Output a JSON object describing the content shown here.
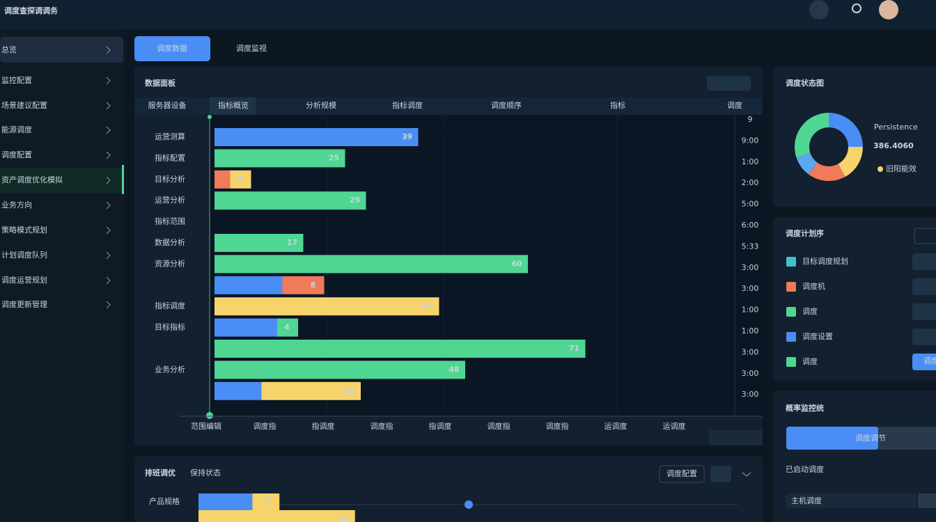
{
  "header": {
    "title": "调度查探调调务"
  },
  "sidebar": {
    "items": [
      "总览",
      "监控配置",
      "场景建议配置",
      "能源调度",
      "调度配置",
      "资产调度优化模拟",
      "业务方向",
      "策略模式规划",
      "计划调度队列",
      "调度运营规划",
      "调度更新管理"
    ]
  },
  "tabs": [
    "调度数据",
    "调度监视"
  ],
  "main_panel": {
    "title": "数据面板",
    "columns": [
      "服务器设备",
      "指标概览",
      "分析规模",
      "指标调度",
      "调度顺序",
      "指标",
      "调度"
    ]
  },
  "status_panel": {
    "title": "调度状态图",
    "caption": "Persistence",
    "metric": "386.4060",
    "legend": "旧阳能效"
  },
  "list_panel": {
    "title": "调度计划序",
    "items": [
      "目标调度规划",
      "调度机",
      "调度",
      "调度设置",
      "调度"
    ],
    "button": "调度"
  },
  "monitor_panel": {
    "title": "概率监控统",
    "button": "调度调节",
    "subtitle": "已启动调度",
    "input": "主机调度"
  },
  "bottom_panel": {
    "title": "排班调优",
    "status": "保持状态",
    "dropdown": "调度配置"
  },
  "chart_data": [
    {
      "type": "bar",
      "orientation": "horizontal",
      "categories": [
        "运营测算",
        "指标配置",
        "目标分析",
        "运营分析",
        "指标范围",
        "数据分析",
        "资源分析",
        null,
        "指标调度",
        "目标指标",
        null,
        "业务分析",
        null
      ],
      "series": [
        {
          "color": "#4a8df5",
          "values": [
            39,
            null,
            null,
            null,
            null,
            null,
            null,
            13,
            null,
            12,
            null,
            null,
            9
          ]
        },
        {
          "color": "#f07a5a",
          "values": [
            null,
            null,
            3,
            null,
            null,
            null,
            null,
            8,
            null,
            null,
            null,
            null,
            null
          ]
        },
        {
          "color": "#4fd693",
          "values": [
            null,
            25,
            null,
            29,
            null,
            17,
            60,
            null,
            null,
            4,
            71,
            48,
            null
          ]
        },
        {
          "color": "#f7d36b",
          "values": [
            null,
            null,
            4,
            null,
            null,
            null,
            null,
            null,
            43,
            null,
            null,
            null,
            19
          ]
        }
      ],
      "xlim": [
        0,
        100
      ],
      "x_labels": [
        "范围编辑",
        "调度指",
        "指调度",
        "调度指",
        "指调度",
        "调度指",
        "调度指",
        "运调度",
        "运调度"
      ],
      "right_labels": [
        "9",
        "9:00",
        "1:00",
        "2:00",
        "5:00",
        "6:00",
        "5:33",
        "3:00",
        "3:00",
        "1:00",
        "1:00",
        "3:00",
        "3:00",
        "3:00"
      ]
    },
    {
      "type": "pie",
      "values": [
        25,
        17,
        18,
        10,
        30
      ],
      "colors": [
        "#4a8df5",
        "#f7d36b",
        "#f07a5a",
        "#5aa8f0",
        "#4fd693"
      ]
    },
    {
      "type": "bar",
      "orientation": "horizontal",
      "categories": [
        "产品规格",
        null
      ],
      "series": [
        {
          "color": "#4a8df5",
          "values": [
            10,
            null
          ]
        },
        {
          "color": "#f7d36b",
          "values": [
            5,
            29
          ]
        }
      ],
      "xlim": [
        0,
        100
      ]
    }
  ]
}
